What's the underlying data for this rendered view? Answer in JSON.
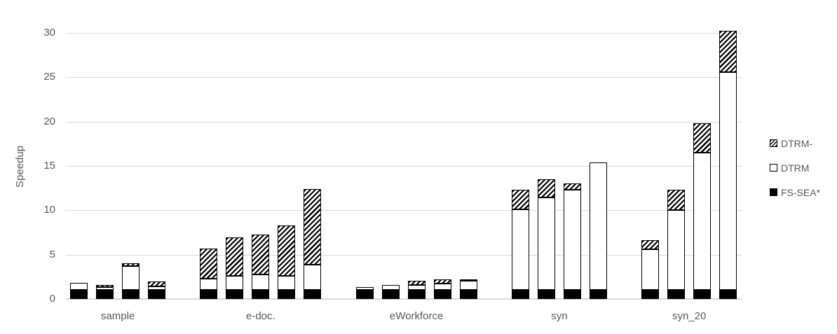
{
  "chart_data": {
    "type": "bar",
    "variant": "grouped-stacked",
    "title": "",
    "ylabel": "Speedup",
    "xlabel": "",
    "yticks": [
      0,
      5,
      10,
      15,
      20,
      25,
      30
    ],
    "ylim": [
      0,
      32
    ],
    "grid": true,
    "legend_position": "right",
    "stack_order_bottom_to_top": [
      "FS-SEA*",
      "DTRM",
      "DTRM-"
    ],
    "legend_items": [
      {
        "label": "DTRM-",
        "swatch": "diagonal-hatch"
      },
      {
        "label": "DTRM",
        "swatch": "white-fill"
      },
      {
        "label": "FS-SEA*",
        "swatch": "black-fill"
      }
    ],
    "groups": [
      {
        "category": "sample",
        "bars": [
          {
            "fs_sea": 1.0,
            "dtrm": 0.8,
            "dtrm_minus": 0.0
          },
          {
            "fs_sea": 1.0,
            "dtrm": 0.35,
            "dtrm_minus": 0.2
          },
          {
            "fs_sea": 1.0,
            "dtrm": 2.7,
            "dtrm_minus": 0.35
          },
          {
            "fs_sea": 1.0,
            "dtrm": 0.45,
            "dtrm_minus": 0.5
          }
        ]
      },
      {
        "category": "e-doc.",
        "bars": [
          {
            "fs_sea": 1.0,
            "dtrm": 1.3,
            "dtrm_minus": 3.4
          },
          {
            "fs_sea": 1.0,
            "dtrm": 1.6,
            "dtrm_minus": 4.35
          },
          {
            "fs_sea": 1.0,
            "dtrm": 1.8,
            "dtrm_minus": 4.5
          },
          {
            "fs_sea": 1.0,
            "dtrm": 1.6,
            "dtrm_minus": 5.7
          },
          {
            "fs_sea": 1.0,
            "dtrm": 2.85,
            "dtrm_minus": 8.55
          }
        ]
      },
      {
        "category": "eWorkforce",
        "bars": [
          {
            "fs_sea": 1.0,
            "dtrm": 0.35,
            "dtrm_minus": 0.0
          },
          {
            "fs_sea": 1.0,
            "dtrm": 0.55,
            "dtrm_minus": 0.0
          },
          {
            "fs_sea": 1.0,
            "dtrm": 0.6,
            "dtrm_minus": 0.45
          },
          {
            "fs_sea": 1.0,
            "dtrm": 0.7,
            "dtrm_minus": 0.55
          },
          {
            "fs_sea": 1.0,
            "dtrm": 1.05,
            "dtrm_minus": 0.15
          }
        ]
      },
      {
        "category": "syn",
        "bars": [
          {
            "fs_sea": 1.0,
            "dtrm": 9.1,
            "dtrm_minus": 2.2
          },
          {
            "fs_sea": 1.0,
            "dtrm": 10.45,
            "dtrm_minus": 2.05
          },
          {
            "fs_sea": 1.0,
            "dtrm": 11.3,
            "dtrm_minus": 0.7
          },
          {
            "fs_sea": 1.0,
            "dtrm": 14.4,
            "dtrm_minus": 0.0
          }
        ]
      },
      {
        "category": "syn_20",
        "bars": [
          {
            "fs_sea": 1.0,
            "dtrm": 4.6,
            "dtrm_minus": 1.0
          },
          {
            "fs_sea": 1.0,
            "dtrm": 9.0,
            "dtrm_minus": 2.3
          },
          {
            "fs_sea": 1.0,
            "dtrm": 15.5,
            "dtrm_minus": 3.35
          },
          {
            "fs_sea": 1.0,
            "dtrm": 24.6,
            "dtrm_minus": 4.6
          }
        ]
      }
    ],
    "colors": {
      "axis_text": "#595959",
      "gridline": "#d9d9d9",
      "bar_outline": "#000000",
      "fs_sea_fill": "#000000",
      "dtrm_fill": "#ffffff",
      "dtrm_minus_fill": "diagonal-hatch"
    }
  }
}
